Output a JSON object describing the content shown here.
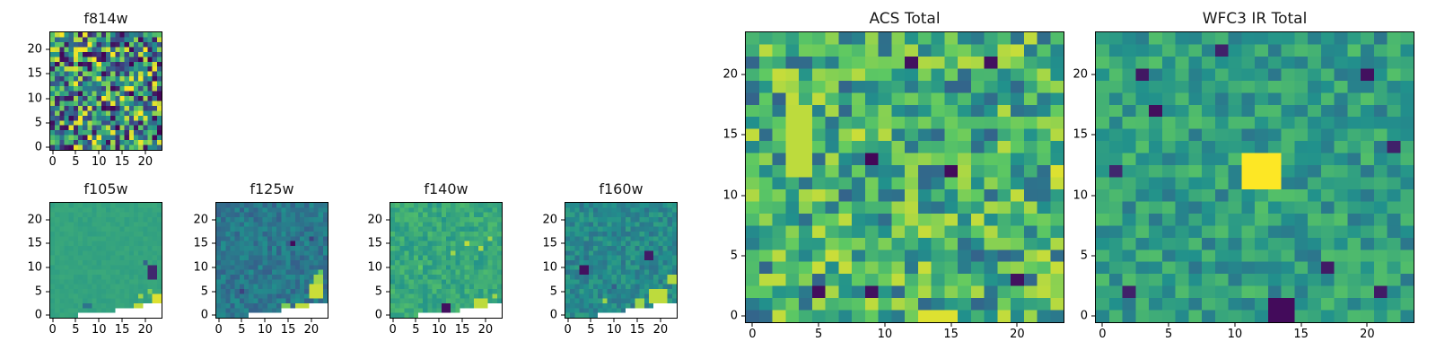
{
  "figure": {
    "background": "#ffffff",
    "text_color": "#000000"
  },
  "colormap": {
    "name": "viridis",
    "stops": [
      "#440154",
      "#3b528b",
      "#21918c",
      "#5ec962",
      "#fde725"
    ]
  },
  "chart_data": [
    {
      "id": "f814w",
      "type": "heatmap",
      "title": "f814w",
      "grid": 24,
      "xlim": [
        0,
        23
      ],
      "ylim": [
        0,
        23
      ],
      "xticks": [
        0,
        5,
        10,
        15,
        20
      ],
      "yticks": [
        0,
        5,
        10,
        15,
        20
      ],
      "seed": 814,
      "base": 0.5,
      "amp": 0.5,
      "features": [
        {
          "x": 11,
          "y": 10,
          "v": 1.0
        },
        {
          "x": 14,
          "y": 4,
          "v": 0.0
        },
        {
          "x": 6,
          "y": 17,
          "v": 0.02
        }
      ],
      "mask": []
    },
    {
      "id": "f105w",
      "type": "heatmap",
      "title": "f105w",
      "grid": 24,
      "xlim": [
        0,
        23
      ],
      "ylim": [
        0,
        23
      ],
      "xticks": [
        0,
        5,
        10,
        15,
        20
      ],
      "yticks": [
        0,
        5,
        10,
        15,
        20
      ],
      "seed": 105,
      "base": 0.58,
      "amp": 0.025,
      "features": [
        {
          "x": 21,
          "y": 8,
          "w": 2,
          "h": 3,
          "v": 0.12
        },
        {
          "x": 20,
          "y": 11,
          "v": 0.32
        },
        {
          "x": 7,
          "y": 2,
          "w": 2,
          "h": 1,
          "v": 0.38
        },
        {
          "x": 19,
          "y": 4,
          "v": 0.85
        },
        {
          "x": 21,
          "y": 5,
          "v": 0.8
        },
        {
          "x": 18,
          "y": 1,
          "w": 3,
          "h": 2,
          "v": 0.9
        },
        {
          "x": 22,
          "y": 3,
          "w": 2,
          "h": 2,
          "v": 0.95
        }
      ],
      "mask": [
        [
          0,
          6,
          23
        ],
        [
          1,
          14,
          23
        ],
        [
          2,
          20,
          23
        ]
      ]
    },
    {
      "id": "f125w",
      "type": "heatmap",
      "title": "f125w",
      "grid": 24,
      "xlim": [
        0,
        23
      ],
      "ylim": [
        0,
        23
      ],
      "xticks": [
        0,
        5,
        10,
        15,
        20
      ],
      "yticks": [
        0,
        5,
        10,
        15,
        20
      ],
      "seed": 125,
      "base": 0.4,
      "amp": 0.1,
      "features": [
        {
          "x": 16,
          "y": 15,
          "v": 0.03
        },
        {
          "x": 20,
          "y": 16,
          "v": 0.2
        },
        {
          "x": 5,
          "y": 5,
          "v": 0.2
        },
        {
          "x": 20,
          "y": 4,
          "w": 3,
          "h": 3,
          "v": 0.92
        },
        {
          "x": 21,
          "y": 7,
          "w": 2,
          "h": 2,
          "v": 0.85
        },
        {
          "x": 17,
          "y": 1,
          "w": 3,
          "h": 2,
          "v": 0.9
        },
        {
          "x": 14,
          "y": 2,
          "w": 2,
          "h": 1,
          "v": 0.8
        },
        {
          "x": 22,
          "y": 9,
          "v": 0.75
        }
      ],
      "mask": [
        [
          0,
          7,
          23
        ],
        [
          1,
          14,
          23
        ],
        [
          2,
          20,
          23
        ]
      ]
    },
    {
      "id": "f140w",
      "type": "heatmap",
      "title": "f140w",
      "grid": 24,
      "xlim": [
        0,
        23
      ],
      "ylim": [
        0,
        23
      ],
      "xticks": [
        0,
        5,
        10,
        15,
        20
      ],
      "yticks": [
        0,
        5,
        10,
        15,
        20
      ],
      "seed": 140,
      "base": 0.6,
      "amp": 0.09,
      "features": [
        {
          "x": 11,
          "y": 1,
          "w": 2,
          "h": 2,
          "v": 0.05
        },
        {
          "x": 16,
          "y": 15,
          "v": 0.9
        },
        {
          "x": 19,
          "y": 14,
          "v": 0.88
        },
        {
          "x": 21,
          "y": 16,
          "v": 0.85
        },
        {
          "x": 13,
          "y": 13,
          "v": 0.85
        },
        {
          "x": 18,
          "y": 2,
          "w": 3,
          "h": 2,
          "v": 0.9
        },
        {
          "x": 22,
          "y": 4,
          "v": 0.85
        },
        {
          "x": 6,
          "y": 10,
          "v": 0.75
        }
      ],
      "mask": [
        [
          0,
          6,
          23
        ],
        [
          1,
          15,
          23
        ],
        [
          2,
          21,
          23
        ]
      ]
    },
    {
      "id": "f160w",
      "type": "heatmap",
      "title": "f160w",
      "grid": 24,
      "xlim": [
        0,
        23
      ],
      "ylim": [
        0,
        23
      ],
      "xticks": [
        0,
        5,
        10,
        15,
        20
      ],
      "yticks": [
        0,
        5,
        10,
        15,
        20
      ],
      "seed": 160,
      "base": 0.47,
      "amp": 0.1,
      "features": [
        {
          "x": 3,
          "y": 9,
          "w": 2,
          "h": 2,
          "v": 0.05
        },
        {
          "x": 17,
          "y": 12,
          "w": 2,
          "h": 2,
          "v": 0.08
        },
        {
          "x": 18,
          "y": 3,
          "w": 4,
          "h": 3,
          "v": 0.9
        },
        {
          "x": 15,
          "y": 2,
          "w": 2,
          "h": 2,
          "v": 0.85
        },
        {
          "x": 8,
          "y": 3,
          "v": 0.85
        },
        {
          "x": 22,
          "y": 7,
          "w": 2,
          "h": 2,
          "v": 0.88
        },
        {
          "x": 10,
          "y": 6,
          "v": 0.3
        }
      ],
      "mask": [
        [
          0,
          7,
          23
        ],
        [
          1,
          13,
          23
        ],
        [
          2,
          19,
          23
        ]
      ]
    },
    {
      "id": "acs_total",
      "type": "heatmap",
      "title": "ACS Total",
      "grid": 24,
      "xlim": [
        0,
        23
      ],
      "ylim": [
        0,
        23
      ],
      "xticks": [
        0,
        5,
        10,
        15,
        20
      ],
      "yticks": [
        0,
        5,
        10,
        15,
        20
      ],
      "seed": 7,
      "base": 0.62,
      "amp": 0.3,
      "features": [
        {
          "x": 9,
          "y": 13,
          "v": 0.02
        },
        {
          "x": 15,
          "y": 12,
          "v": 0.03
        },
        {
          "x": 18,
          "y": 21,
          "v": 0.05
        },
        {
          "x": 12,
          "y": 21,
          "v": 0.05
        },
        {
          "x": 5,
          "y": 2,
          "v": 0.04
        },
        {
          "x": 20,
          "y": 3,
          "v": 0.05
        },
        {
          "x": 9,
          "y": 2,
          "v": 0.05
        },
        {
          "x": 3,
          "y": 12,
          "w": 2,
          "h": 6,
          "v": 0.9
        },
        {
          "x": 13,
          "y": 0,
          "w": 3,
          "h": 1,
          "v": 0.95
        },
        {
          "x": 6,
          "y": 5,
          "v": 0.92
        },
        {
          "x": 23,
          "y": 12,
          "v": 0.95
        }
      ],
      "mask": []
    },
    {
      "id": "wfc3_ir_total",
      "type": "heatmap",
      "title": "WFC3 IR Total",
      "grid": 24,
      "xlim": [
        0,
        23
      ],
      "ylim": [
        0,
        23
      ],
      "xticks": [
        0,
        5,
        10,
        15,
        20
      ],
      "yticks": [
        0,
        5,
        10,
        15,
        20
      ],
      "seed": 9,
      "base": 0.55,
      "amp": 0.16,
      "features": [
        {
          "x": 11,
          "y": 11,
          "w": 3,
          "h": 3,
          "v": 1.0
        },
        {
          "x": 4,
          "y": 17,
          "v": 0.04
        },
        {
          "x": 20,
          "y": 20,
          "v": 0.05
        },
        {
          "x": 22,
          "y": 14,
          "v": 0.1
        },
        {
          "x": 13,
          "y": 0,
          "w": 2,
          "h": 2,
          "v": 0.03
        },
        {
          "x": 17,
          "y": 4,
          "v": 0.08
        },
        {
          "x": 2,
          "y": 2,
          "v": 0.1
        },
        {
          "x": 21,
          "y": 2,
          "v": 0.08
        },
        {
          "x": 3,
          "y": 20,
          "v": 0.07
        },
        {
          "x": 9,
          "y": 22,
          "v": 0.1
        },
        {
          "x": 1,
          "y": 12,
          "v": 0.12
        }
      ],
      "mask": []
    }
  ]
}
